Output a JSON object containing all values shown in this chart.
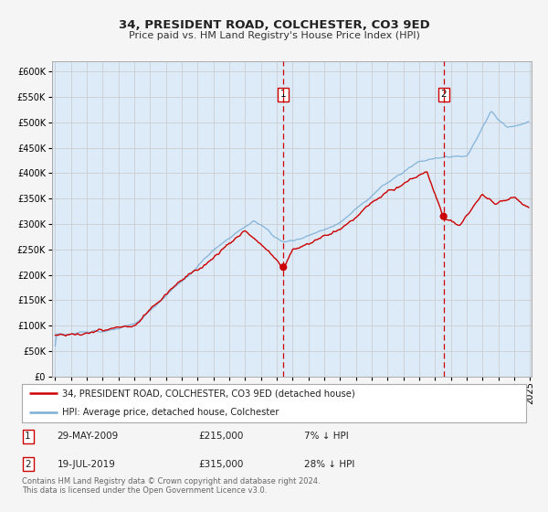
{
  "title": "34, PRESIDENT ROAD, COLCHESTER, CO3 9ED",
  "subtitle": "Price paid vs. HM Land Registry's House Price Index (HPI)",
  "ylim": [
    0,
    620000
  ],
  "yticks": [
    0,
    50000,
    100000,
    150000,
    200000,
    250000,
    300000,
    350000,
    400000,
    450000,
    500000,
    550000,
    600000
  ],
  "ytick_labels": [
    "£0",
    "£50K",
    "£100K",
    "£150K",
    "£200K",
    "£250K",
    "£300K",
    "£350K",
    "£400K",
    "£450K",
    "£500K",
    "£550K",
    "£600K"
  ],
  "hpi_color": "#7aaed6",
  "price_color": "#cc0000",
  "background_color": "#f5f5f5",
  "plot_bg_color": "#ddeaf7",
  "grid_color": "#c8c8c8",
  "sale1_yr": 2009.416,
  "sale1_price": 215000,
  "sale2_yr": 2019.541,
  "sale2_price": 315000,
  "dashed_line_color": "#cc0000",
  "legend_line1": "34, PRESIDENT ROAD, COLCHESTER, CO3 9ED (detached house)",
  "legend_line2": "HPI: Average price, detached house, Colchester",
  "table_row1": [
    "1",
    "29-MAY-2009",
    "£215,000",
    "7% ↓ HPI"
  ],
  "table_row2": [
    "2",
    "19-JUL-2019",
    "£315,000",
    "28% ↓ HPI"
  ],
  "footnote": "Contains HM Land Registry data © Crown copyright and database right 2024.\nThis data is licensed under the Open Government Licence v3.0.",
  "xstart_year": 1995,
  "xend_year": 2025
}
